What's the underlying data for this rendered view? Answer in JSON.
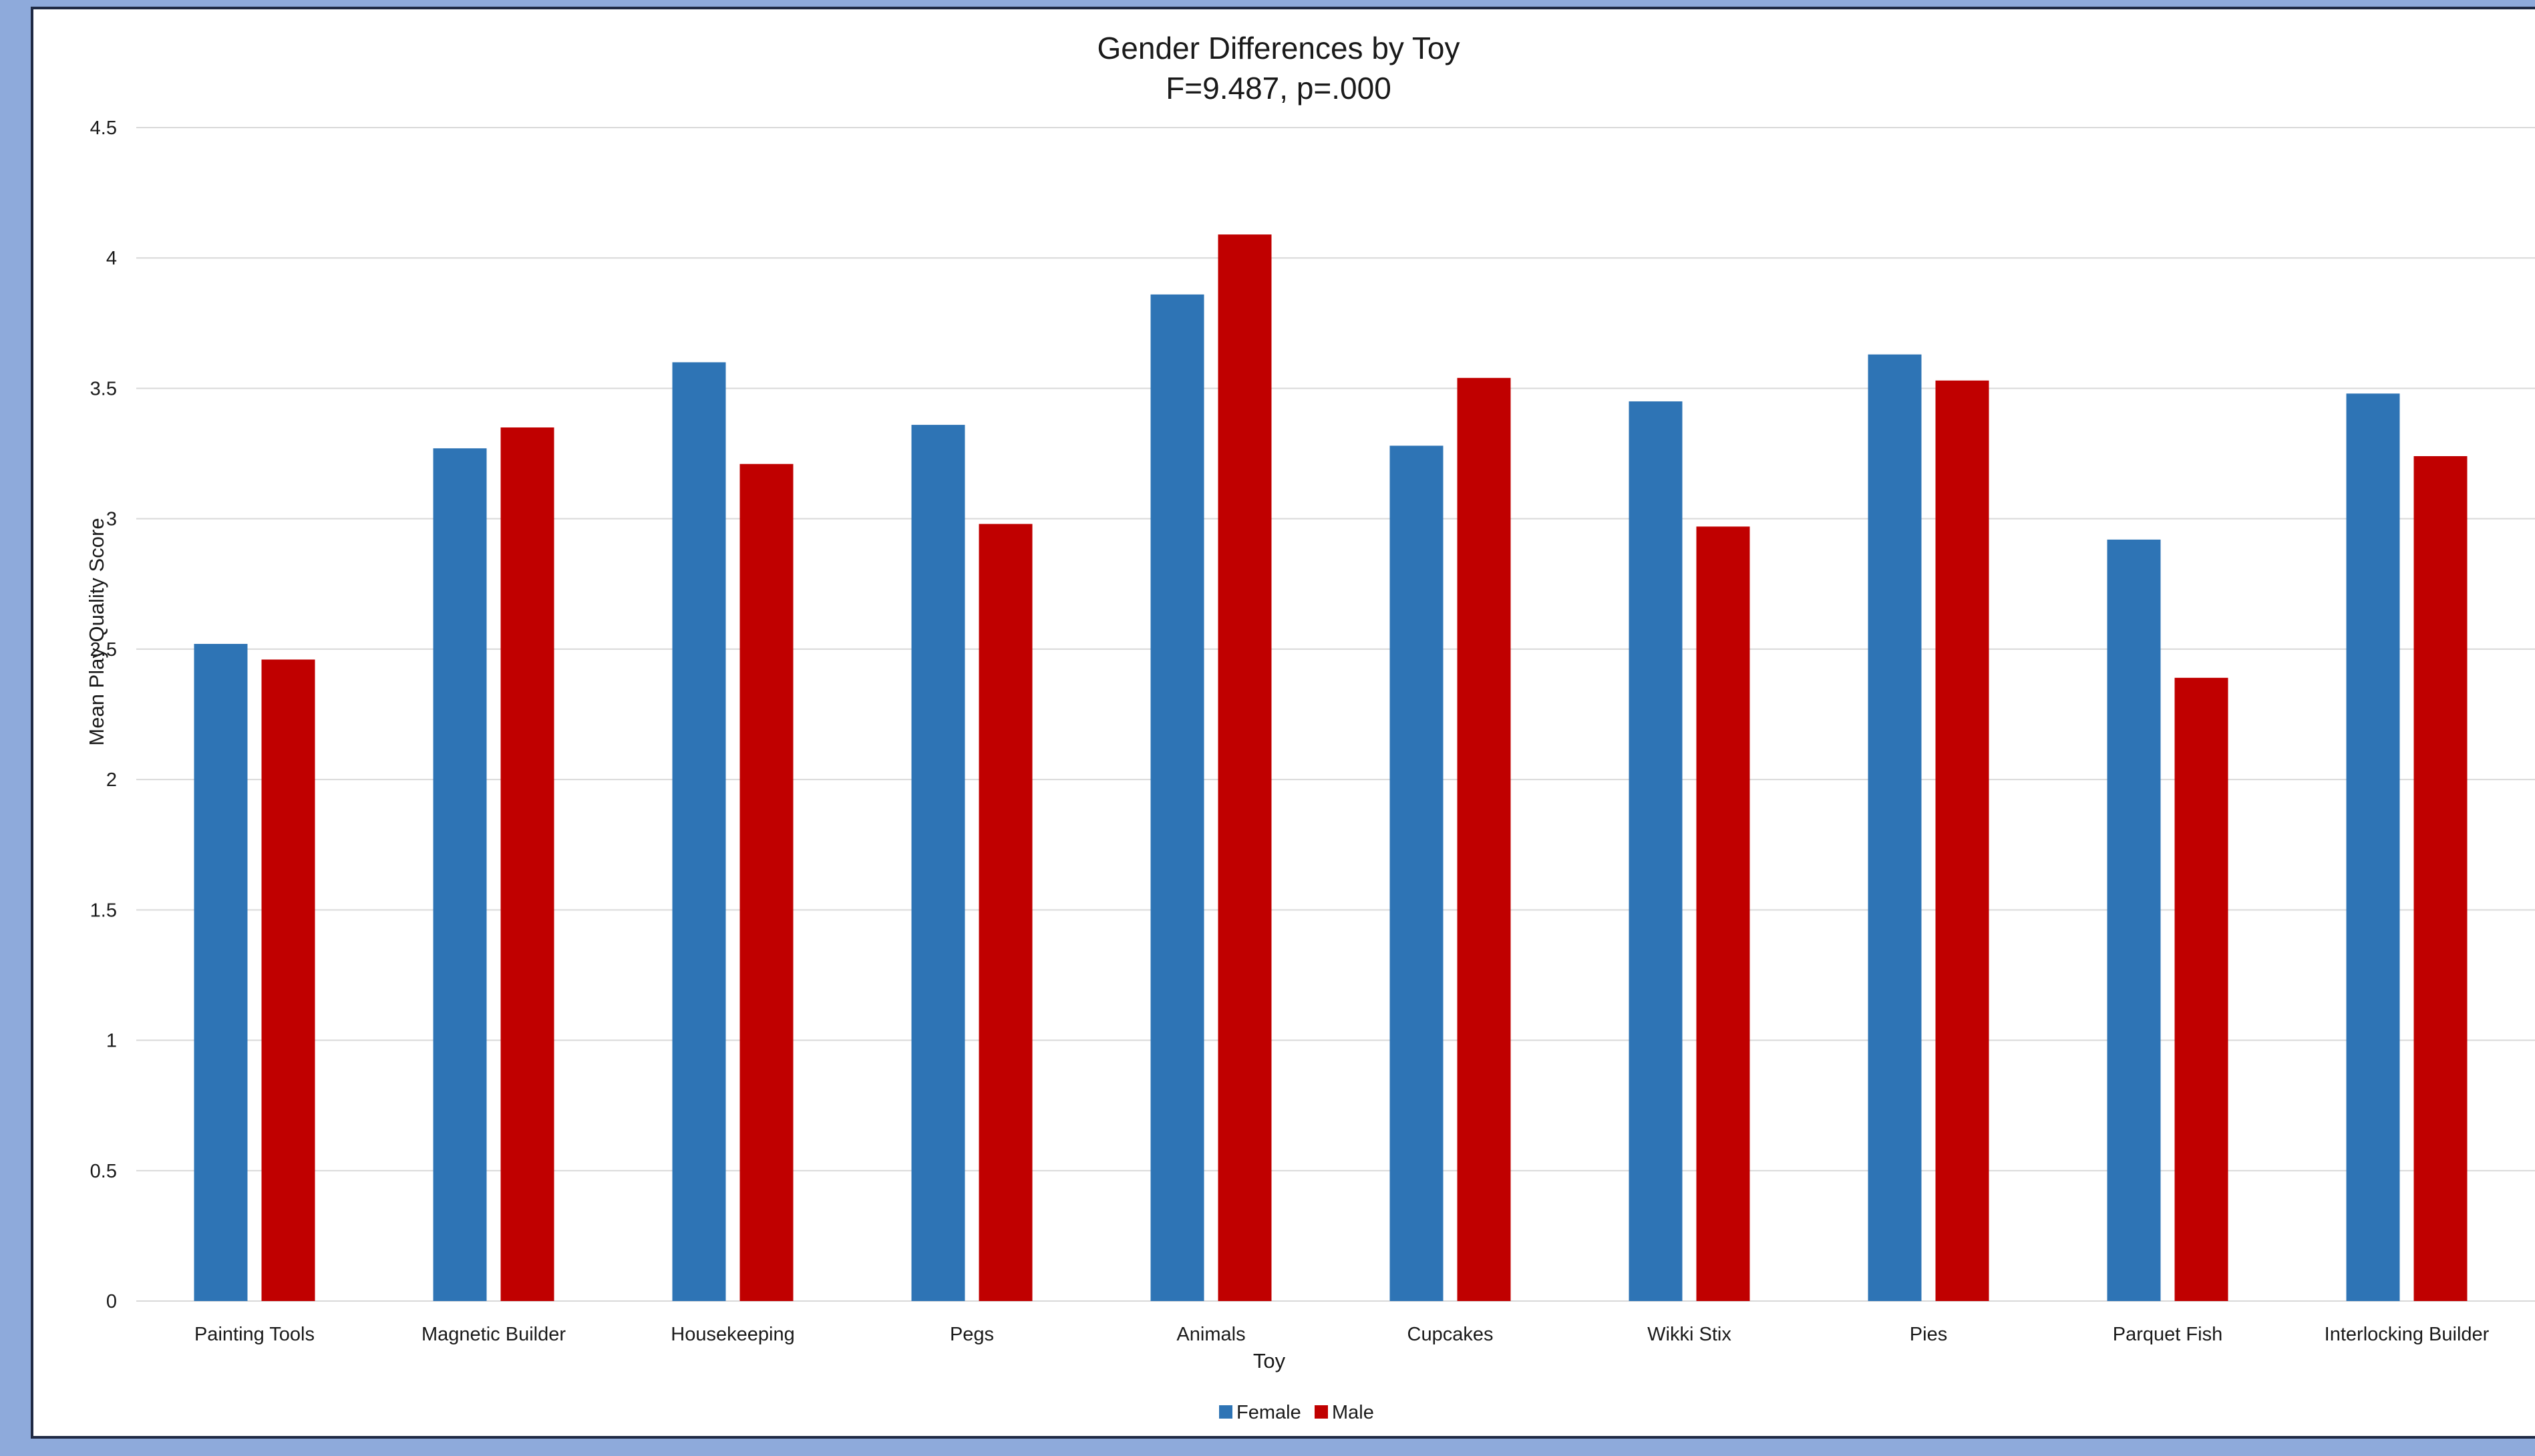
{
  "colors": {
    "background": "#8eaadb",
    "frame": "#1f2a44",
    "female": "#2e74b5",
    "male": "#c00000",
    "grid": "#d9d9d9"
  },
  "chart_data": {
    "type": "bar",
    "title": "Gender Differences by Toy",
    "subtitle": "F=9.487, p=.000",
    "xlabel": "Toy",
    "ylabel": "Mean Play Quality Score",
    "ylim": [
      0,
      4.5
    ],
    "yticks": [
      0,
      0.5,
      1,
      1.5,
      2,
      2.5,
      3,
      3.5,
      4,
      4.5
    ],
    "ytick_labels": [
      "0",
      "0.5",
      "1",
      "1.5",
      "2",
      "2.5",
      "3",
      "3.5",
      "4",
      "4.5"
    ],
    "grid": true,
    "legend_position": "bottom",
    "categories": [
      "Painting Tools",
      "Magnetic Builder",
      "Housekeeping",
      "Pegs",
      "Animals",
      "Cupcakes",
      "Wikki Stix",
      "Pies",
      "Parquet Fish",
      "Interlocking Builder"
    ],
    "series": [
      {
        "name": "Female",
        "color": "#2e74b5",
        "values": [
          2.52,
          3.27,
          3.6,
          3.36,
          3.86,
          3.28,
          3.45,
          3.63,
          2.92,
          3.48
        ]
      },
      {
        "name": "Male",
        "color": "#c00000",
        "values": [
          2.46,
          3.35,
          3.21,
          2.98,
          4.09,
          3.54,
          2.97,
          3.53,
          2.39,
          3.24
        ]
      }
    ]
  }
}
